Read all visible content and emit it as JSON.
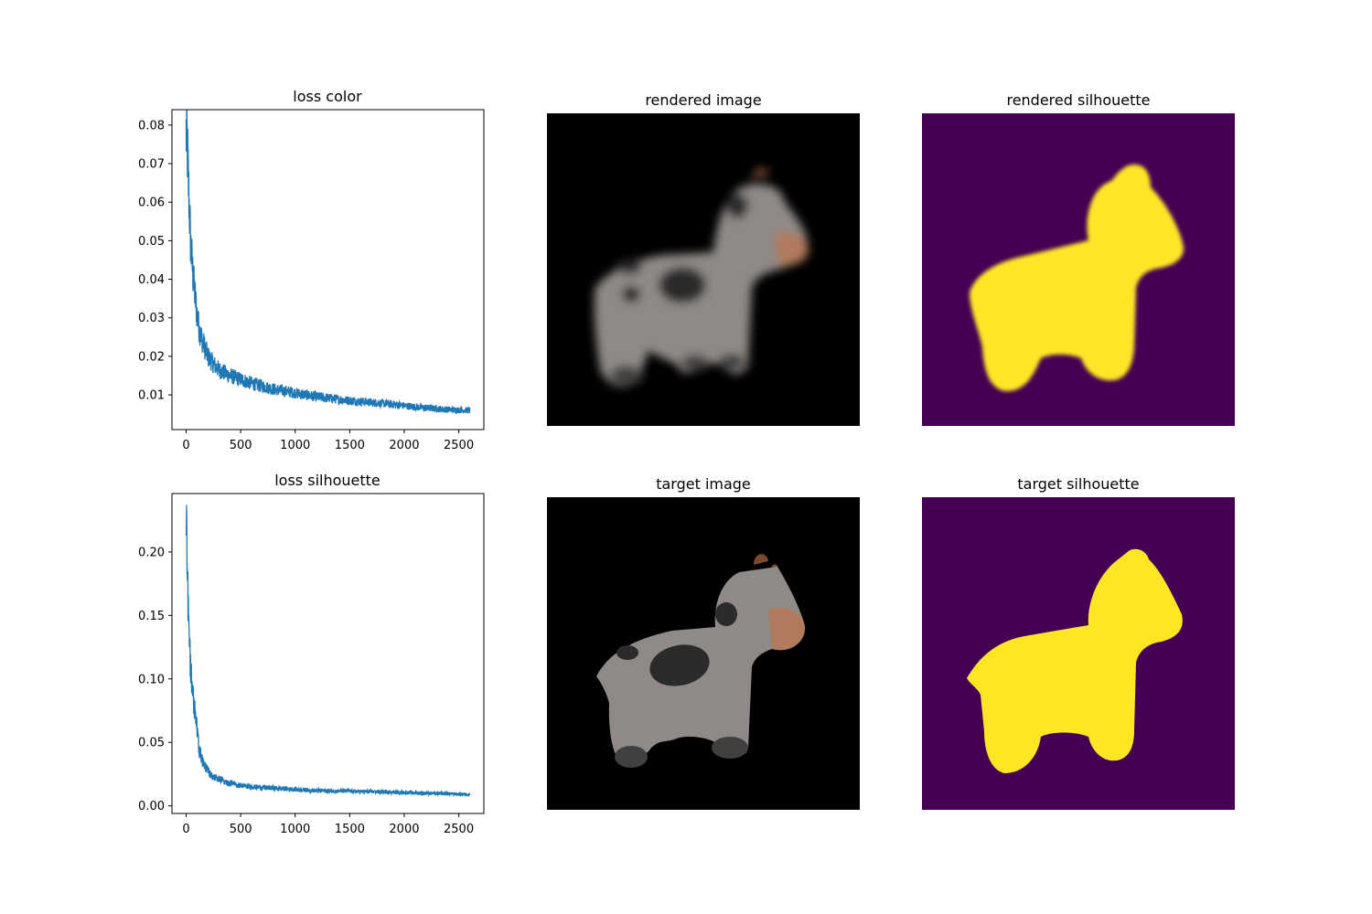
{
  "titles": {
    "loss_color": "loss color",
    "rendered_image": "rendered image",
    "rendered_silhouette": "rendered silhouette",
    "loss_silhouette": "loss silhouette",
    "target_image": "target image",
    "target_silhouette": "target silhouette"
  },
  "colors": {
    "line": "#1f77b4",
    "silhouette_bg": "#440154",
    "silhouette_fg": "#fde725",
    "image_bg": "#000000",
    "cow_body": "#8f8a87",
    "cow_spot": "#2b2b2b",
    "cow_muzzle": "#b07a5c",
    "cow_hoof": "#404040",
    "cow_horn": "#7a4a32"
  },
  "chart_data": [
    {
      "type": "line",
      "title": "loss color",
      "xlabel": "",
      "ylabel": "",
      "xlim": [
        -130,
        2730
      ],
      "ylim": [
        0.001,
        0.084
      ],
      "x_ticks": [
        0,
        500,
        1000,
        1500,
        2000,
        2500
      ],
      "y_ticks": [
        0.01,
        0.02,
        0.03,
        0.04,
        0.05,
        0.06,
        0.07,
        0.08
      ],
      "x_tick_labels": [
        "0",
        "500",
        "1000",
        "1500",
        "2000",
        "2500"
      ],
      "y_tick_labels": [
        "0.01",
        "0.02",
        "0.03",
        "0.04",
        "0.05",
        "0.06",
        "0.07",
        "0.08"
      ],
      "grid": false,
      "series": [
        {
          "x": [
            0,
            10,
            20,
            30,
            40,
            60,
            80,
            100,
            120,
            150,
            200,
            250,
            300,
            400,
            500,
            600,
            800,
            1000,
            1200,
            1500,
            1800,
            2000,
            2200,
            2400,
            2600
          ],
          "y": [
            0.078,
            0.075,
            0.066,
            0.058,
            0.05,
            0.042,
            0.036,
            0.031,
            0.027,
            0.024,
            0.02,
            0.018,
            0.0165,
            0.015,
            0.014,
            0.013,
            0.0115,
            0.0105,
            0.0095,
            0.0085,
            0.0078,
            0.0072,
            0.0066,
            0.0062,
            0.006
          ]
        }
      ]
    },
    {
      "type": "line",
      "title": "loss silhouette",
      "xlabel": "",
      "ylabel": "",
      "xlim": [
        -130,
        2730
      ],
      "ylim": [
        -0.006,
        0.246
      ],
      "x_ticks": [
        0,
        500,
        1000,
        1500,
        2000,
        2500
      ],
      "y_ticks": [
        0.0,
        0.05,
        0.1,
        0.15,
        0.2
      ],
      "x_tick_labels": [
        "0",
        "500",
        "1000",
        "1500",
        "2000",
        "2500"
      ],
      "y_tick_labels": [
        "0.00",
        "0.05",
        "0.10",
        "0.15",
        "0.20"
      ],
      "grid": false,
      "series": [
        {
          "x": [
            0,
            10,
            20,
            30,
            40,
            60,
            80,
            100,
            120,
            150,
            200,
            250,
            300,
            400,
            500,
            600,
            800,
            1000,
            1200,
            1500,
            1800,
            2000,
            2200,
            2400,
            2600
          ],
          "y": [
            0.23,
            0.2,
            0.16,
            0.13,
            0.11,
            0.09,
            0.075,
            0.06,
            0.045,
            0.035,
            0.027,
            0.023,
            0.021,
            0.018,
            0.016,
            0.015,
            0.014,
            0.013,
            0.012,
            0.0115,
            0.011,
            0.0105,
            0.01,
            0.0095,
            0.009
          ]
        }
      ]
    }
  ]
}
